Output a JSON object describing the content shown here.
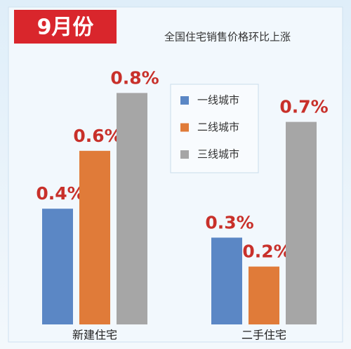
{
  "chart_data": {
    "type": "bar",
    "title": "9月份",
    "subtitle": "全国住宅销售价格环比上涨",
    "categories": [
      "新建住宅",
      "二手住宅"
    ],
    "series": [
      {
        "name": "一线城市",
        "color": "#5b87c5",
        "values": [
          0.4,
          0.3
        ],
        "value_labels": [
          "0.4%",
          "0.3%"
        ]
      },
      {
        "name": "二线城市",
        "color": "#e07b39",
        "values": [
          0.6,
          0.2
        ],
        "value_labels": [
          "0.6%",
          "0.2%"
        ]
      },
      {
        "name": "三线城市",
        "color": "#a6a6a6",
        "values": [
          0.8,
          0.7
        ],
        "value_labels": [
          "0.8%",
          "0.7%"
        ]
      }
    ]
  }
}
